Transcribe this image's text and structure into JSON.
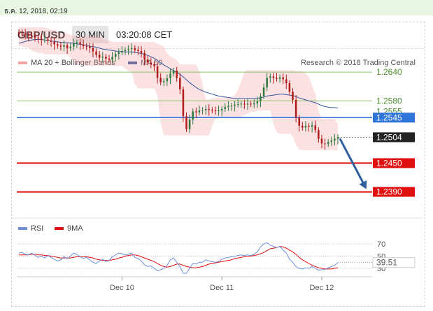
{
  "timestamp": "ธ.ค. 12, 2018, 02:19",
  "header": {
    "symbol": "GBP/USD",
    "timeframe": "30 MIN",
    "time": "03:20:08 CET"
  },
  "credit": "Research © 2018 Trading Central",
  "colors": {
    "bollinger": "#f4a3a3",
    "ma50": "#34589e",
    "resistance": "#8cc06a",
    "pivot": "#2f74d8",
    "support": "#e01010",
    "rsi": "#6d8fdb",
    "rsi_ma": "#e01010",
    "candle_up": "#2f7a3e",
    "candle_down": "#b01c1c",
    "arrow": "#2f5e9e"
  },
  "chart_data": [
    {
      "type": "candlestick",
      "title": "GBP/USD",
      "legend": [
        {
          "name": "MA 20 + Bollinger Bands",
          "color": "#f4a3a3"
        },
        {
          "name": "MA 50",
          "color": "#34589e"
        }
      ],
      "x_tick_labels": [
        "Dec 10",
        "Dec 11",
        "Dec 12"
      ],
      "ylim": [
        1.2375,
        1.2745
      ],
      "levels": [
        {
          "label": "1.2640",
          "value": 1.264,
          "kind": "resistance"
        },
        {
          "label": "1.2580",
          "value": 1.258,
          "kind": "resistance"
        },
        {
          "label": "1.2545",
          "value": 1.2545,
          "kind": "pivot"
        },
        {
          "label": "1.2504",
          "value": 1.2504,
          "kind": "current"
        },
        {
          "label": "1.2450",
          "value": 1.245,
          "kind": "support"
        },
        {
          "label": "1.2390",
          "value": 1.239,
          "kind": "support"
        }
      ],
      "hidden_label": "1.2555",
      "forecast_arrow": {
        "from": [
          1.0,
          1.2504
        ],
        "to": [
          1.13,
          1.24
        ]
      },
      "close_series": [
        1.2721,
        1.272,
        1.2718,
        1.2716,
        1.2715,
        1.2712,
        1.271,
        1.2707,
        1.2708,
        1.2705,
        1.2703,
        1.2698,
        1.2695,
        1.2693,
        1.2696,
        1.269,
        1.2693,
        1.27,
        1.2702,
        1.2698,
        1.2694,
        1.2693,
        1.269,
        1.2683,
        1.2676,
        1.267,
        1.2672,
        1.2668,
        1.2666,
        1.2672,
        1.2678,
        1.2681,
        1.2684,
        1.2686,
        1.2688,
        1.269,
        1.2686,
        1.2684,
        1.268,
        1.2666,
        1.266,
        1.2656,
        1.2652,
        1.2628,
        1.2619,
        1.2621,
        1.2627,
        1.2637,
        1.2643,
        1.2628,
        1.2604,
        1.2548,
        1.2521,
        1.2541,
        1.2558,
        1.2556,
        1.256,
        1.2561,
        1.2563,
        1.2561,
        1.256,
        1.2559,
        1.256,
        1.2563,
        1.2567,
        1.2569,
        1.257,
        1.2572,
        1.2573,
        1.2574,
        1.2573,
        1.2574,
        1.2573,
        1.2575,
        1.2579,
        1.259,
        1.2608,
        1.2628,
        1.2631,
        1.2628,
        1.2626,
        1.2629,
        1.2625,
        1.2617,
        1.2599,
        1.2582,
        1.2545,
        1.2528,
        1.2524,
        1.2528,
        1.2526,
        1.2529,
        1.2519,
        1.2501,
        1.2491,
        1.249,
        1.2494,
        1.2497,
        1.2501,
        1.2504
      ],
      "ma50_series": [
        1.27,
        1.2702,
        1.2704,
        1.2706,
        1.2707,
        1.2708,
        1.2708,
        1.2708,
        1.2707,
        1.2706,
        1.2705,
        1.2704,
        1.2703,
        1.2702,
        1.2702,
        1.2701,
        1.2701,
        1.27,
        1.2699,
        1.2698,
        1.2697,
        1.2696,
        1.2694,
        1.2693,
        1.2692,
        1.269,
        1.2688,
        1.2687,
        1.2686,
        1.2685,
        1.2684,
        1.2683,
        1.2683,
        1.2682,
        1.2682,
        1.2682,
        1.2681,
        1.268,
        1.2679,
        1.2677,
        1.2675,
        1.2672,
        1.2669,
        1.2664,
        1.2659,
        1.2655,
        1.2651,
        1.2647,
        1.2643,
        1.2639,
        1.2635,
        1.263,
        1.2624,
        1.2618,
        1.2613,
        1.2608,
        1.2604,
        1.2601,
        1.2598,
        1.2596,
        1.2594,
        1.2592,
        1.259,
        1.2589,
        1.2588,
        1.2587,
        1.2586,
        1.2585,
        1.2585,
        1.2585,
        1.2585,
        1.2585,
        1.2585,
        1.2585,
        1.2585,
        1.2586,
        1.2588,
        1.259,
        1.2591,
        1.2592,
        1.2593,
        1.2594,
        1.2594,
        1.2593,
        1.2592,
        1.2591,
        1.2589,
        1.2586,
        1.2584,
        1.2582,
        1.258,
        1.2578,
        1.2576,
        1.2573,
        1.257,
        1.2568,
        1.2567,
        1.2566,
        1.2566,
        1.2565
      ]
    },
    {
      "type": "line",
      "title": "RSI",
      "legend": [
        {
          "name": "RSI",
          "color": "#6d8fdb"
        },
        {
          "name": "9MA",
          "color": "#e01010"
        }
      ],
      "ylim": [
        15,
        80
      ],
      "y_ticks": [
        "70",
        "50",
        "30"
      ],
      "current_value_label": "39.51",
      "rsi_series": [
        55,
        56,
        53,
        52,
        55,
        51,
        48,
        50,
        47,
        51,
        48,
        45,
        42,
        44,
        49,
        46,
        50,
        55,
        53,
        49,
        46,
        48,
        44,
        40,
        38,
        42,
        45,
        41,
        43,
        49,
        52,
        55,
        54,
        52,
        53,
        55,
        48,
        46,
        42,
        36,
        33,
        34,
        30,
        26,
        28,
        30,
        35,
        44,
        47,
        40,
        33,
        22,
        22,
        30,
        38,
        37,
        40,
        40,
        44,
        42,
        41,
        40,
        41,
        45,
        47,
        48,
        49,
        50,
        51,
        52,
        51,
        52,
        51,
        53,
        57,
        65,
        70,
        72,
        68,
        66,
        64,
        66,
        60,
        55,
        45,
        40,
        33,
        30,
        29,
        31,
        30,
        33,
        30,
        27,
        28,
        28,
        31,
        33,
        35,
        39.51
      ],
      "ma9_series": [
        52,
        52,
        52,
        52,
        53,
        53,
        52,
        52,
        51,
        51,
        50,
        49,
        48,
        47,
        47,
        47,
        47,
        48,
        49,
        49,
        49,
        49,
        48,
        47,
        45,
        44,
        43,
        43,
        43,
        44,
        45,
        47,
        48,
        50,
        51,
        52,
        52,
        51,
        49,
        47,
        45,
        43,
        41,
        38,
        35,
        33,
        32,
        33,
        35,
        37,
        37,
        35,
        33,
        32,
        31,
        31,
        32,
        33,
        35,
        37,
        38,
        39,
        40,
        41,
        42,
        43,
        44,
        46,
        47,
        48,
        49,
        50,
        50,
        51,
        52,
        54,
        56,
        59,
        62,
        63,
        64,
        66,
        65,
        63,
        60,
        57,
        53,
        48,
        44,
        41,
        38,
        35,
        33,
        31,
        30,
        29,
        29,
        29,
        30,
        31
      ]
    }
  ]
}
